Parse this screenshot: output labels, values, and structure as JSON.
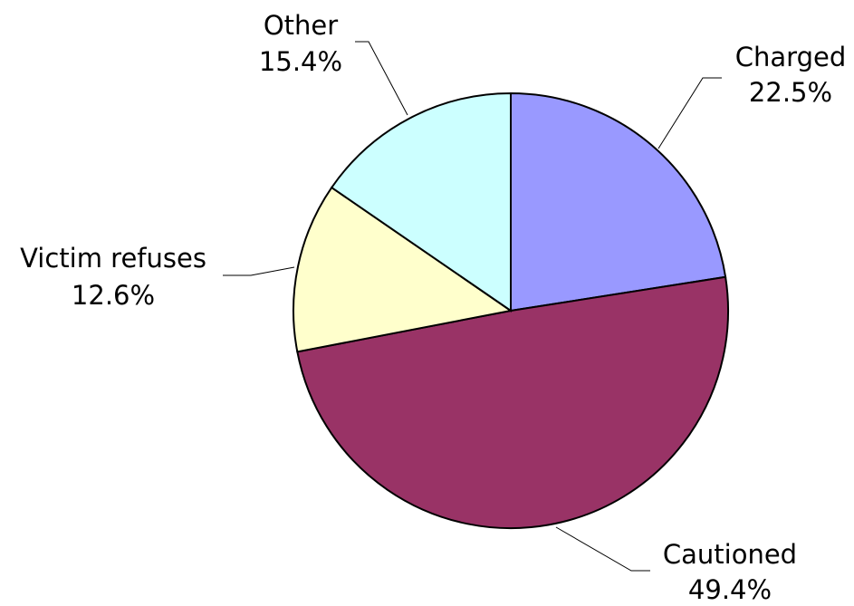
{
  "chart_data": {
    "type": "pie",
    "title": "",
    "slices": [
      {
        "label": "Charged",
        "value_label": "22.5%",
        "value": 22.5,
        "color": "#9999ff"
      },
      {
        "label": "Cautioned",
        "value_label": "49.4%",
        "value": 49.4,
        "color": "#993366"
      },
      {
        "label": "Victim refuses",
        "value_label": "12.6%",
        "value": 12.6,
        "color": "#ffffcc"
      },
      {
        "label": "Other",
        "value_label": "15.4%",
        "value": 15.4,
        "color": "#ccffff"
      }
    ],
    "start_angle": "12 o'clock",
    "direction": "clockwise",
    "legend": "none",
    "label_style": "outside labels with leader lines"
  }
}
